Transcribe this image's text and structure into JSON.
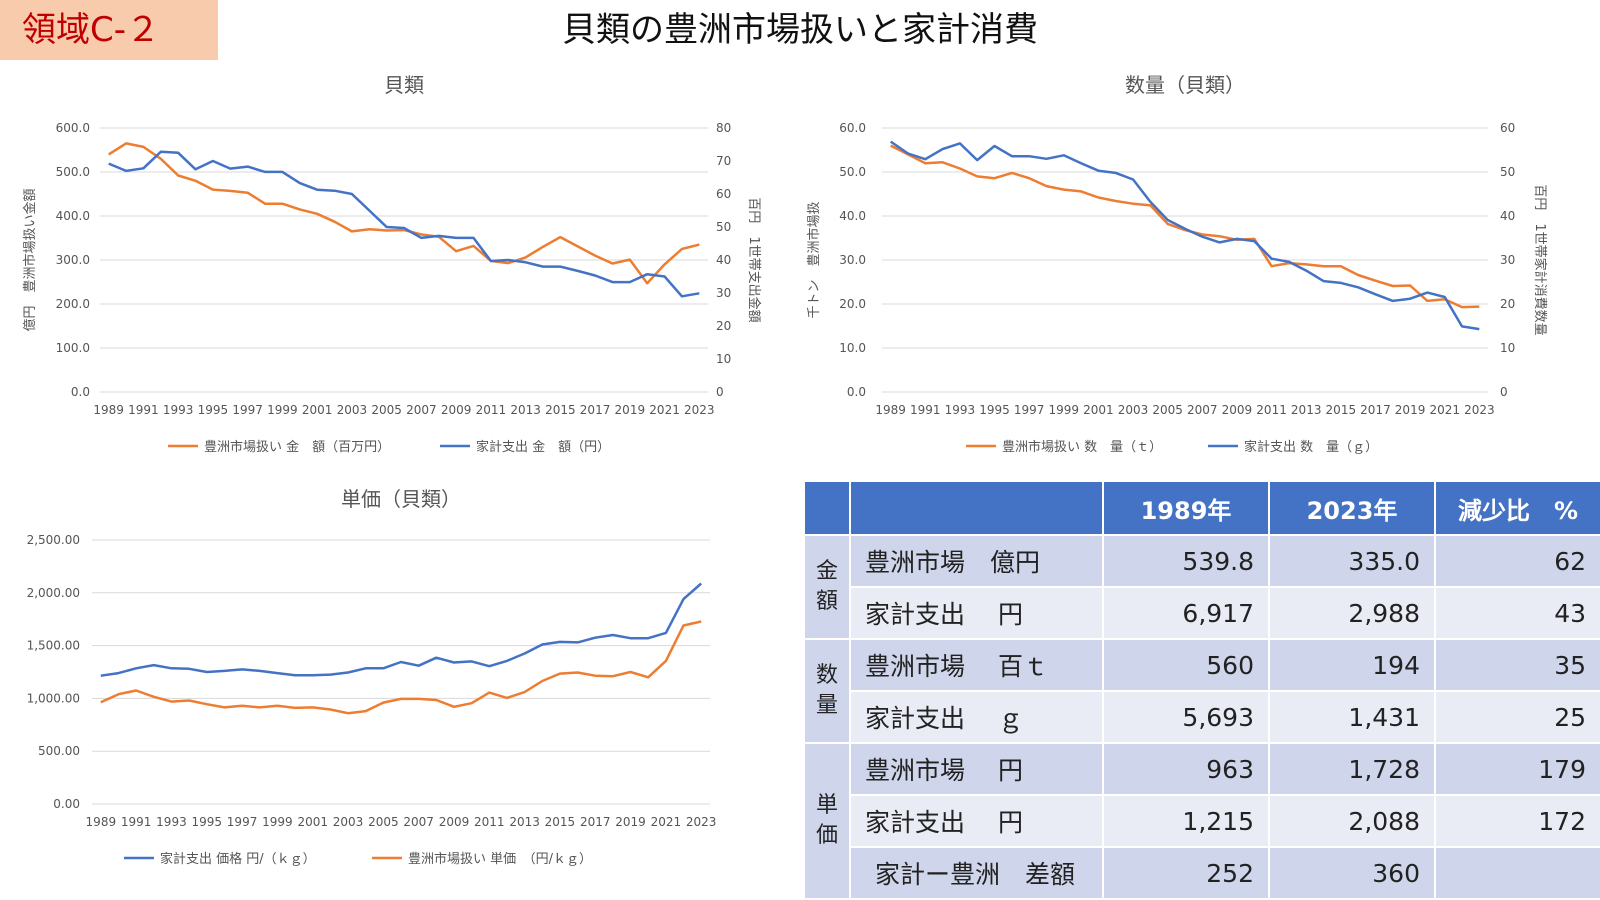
{
  "badge": "領域C-２",
  "main_title": "貝類の豊洲市場扱いと家計消費",
  "colors": {
    "orange": "#ed7d31",
    "blue": "#4472c4",
    "badge_bg": "#f8cbad",
    "badge_text": "#c00000"
  },
  "chart_data": [
    {
      "type": "line",
      "title": "貝類",
      "ylabel": "億円　豊洲市場扱い金額",
      "y2label": "百円　1世帯支出金額",
      "ylim": [
        0,
        600
      ],
      "y2lim": [
        0,
        80
      ],
      "yticks": [
        "600.0",
        "500.0",
        "400.0",
        "300.0",
        "200.0",
        "100.0",
        "0.0"
      ],
      "y2ticks": [
        "80",
        "70",
        "60",
        "50",
        "40",
        "30",
        "20",
        "10",
        "0"
      ],
      "x_tick_labels": [
        "1989",
        "1991",
        "1993",
        "1995",
        "1997",
        "1999",
        "2001",
        "2003",
        "2005",
        "2007",
        "2009",
        "2011",
        "2013",
        "2015",
        "2017",
        "2019",
        "2021",
        "2023"
      ],
      "x": [
        1989,
        1990,
        1991,
        1992,
        1993,
        1994,
        1995,
        1996,
        1997,
        1998,
        1999,
        2000,
        2001,
        2002,
        2003,
        2004,
        2005,
        2006,
        2007,
        2008,
        2009,
        2010,
        2011,
        2012,
        2013,
        2014,
        2015,
        2016,
        2017,
        2018,
        2019,
        2020,
        2021,
        2022,
        2023
      ],
      "series": [
        {
          "name": "豊洲市場扱い 金　額（百万円）",
          "axis": "left",
          "color": "#ed7d31",
          "values": [
            540,
            565,
            557,
            530,
            492,
            480,
            460,
            457,
            453,
            428,
            428,
            415,
            405,
            387,
            365,
            370,
            367,
            368,
            358,
            353,
            320,
            332,
            298,
            293,
            306,
            330,
            352,
            331,
            310,
            292,
            301,
            247,
            290,
            325,
            335
          ]
        },
        {
          "name": "家計支出 金　額（円）",
          "axis": "right",
          "color": "#4472c4",
          "values": [
            69.2,
            67.0,
            67.8,
            72.8,
            72.5,
            67.5,
            70.0,
            67.7,
            68.3,
            66.7,
            66.7,
            63.3,
            61.3,
            61.0,
            60.0,
            55.0,
            50.0,
            49.7,
            46.7,
            47.3,
            46.7,
            46.7,
            39.7,
            40.0,
            39.3,
            38.0,
            38.0,
            36.7,
            35.3,
            33.3,
            33.3,
            35.7,
            35.0,
            29.0,
            29.9
          ]
        }
      ]
    },
    {
      "type": "line",
      "title": "数量（貝類）",
      "ylabel": "千トン　豊洲市場扱",
      "y2label": "百円　1世帯家計消費数量",
      "ylim": [
        0,
        60
      ],
      "y2lim": [
        0,
        60
      ],
      "yticks": [
        "60.0",
        "50.0",
        "40.0",
        "30.0",
        "20.0",
        "10.0",
        "0.0"
      ],
      "y2ticks": [
        "60",
        "50",
        "40",
        "30",
        "20",
        "10",
        "0"
      ],
      "x_tick_labels": [
        "1989",
        "1991",
        "1993",
        "1995",
        "1997",
        "1999",
        "2001",
        "2003",
        "2005",
        "2007",
        "2009",
        "2011",
        "2013",
        "2015",
        "2017",
        "2019",
        "2021",
        "2023"
      ],
      "x": [
        1989,
        1990,
        1991,
        1992,
        1993,
        1994,
        1995,
        1996,
        1997,
        1998,
        1999,
        2000,
        2001,
        2002,
        2003,
        2004,
        2005,
        2006,
        2007,
        2008,
        2009,
        2010,
        2011,
        2012,
        2013,
        2014,
        2015,
        2016,
        2017,
        2018,
        2019,
        2020,
        2021,
        2022,
        2023
      ],
      "series": [
        {
          "name": "豊洲市場扱い 数　量（ｔ）",
          "axis": "left",
          "color": "#ed7d31",
          "values": [
            56.0,
            54.0,
            52.0,
            52.2,
            50.8,
            49.0,
            48.6,
            49.8,
            48.6,
            46.8,
            46.0,
            45.6,
            44.2,
            43.4,
            42.8,
            42.4,
            38.2,
            36.8,
            35.8,
            35.4,
            34.6,
            34.8,
            28.6,
            29.3,
            29.0,
            28.6,
            28.6,
            26.6,
            25.3,
            24.1,
            24.2,
            20.7,
            21.1,
            19.3,
            19.4
          ]
        },
        {
          "name": "家計支出 数　量（ｇ）",
          "axis": "right",
          "color": "#4472c4",
          "values": [
            56.9,
            54.2,
            52.9,
            55.2,
            56.5,
            52.7,
            55.9,
            53.6,
            53.6,
            53.0,
            53.8,
            52.0,
            50.3,
            49.8,
            48.3,
            43.2,
            39.1,
            37.1,
            35.3,
            34.0,
            34.8,
            34.3,
            30.3,
            29.6,
            27.6,
            25.2,
            24.8,
            23.8,
            22.2,
            20.7,
            21.2,
            22.6,
            21.6,
            14.9,
            14.3
          ]
        }
      ]
    },
    {
      "type": "line",
      "title": "単価（貝類）",
      "ylim": [
        0,
        2500
      ],
      "yticks": [
        "2,500.00",
        "2,000.00",
        "1,500.00",
        "1,000.00",
        "500.00",
        "0.00"
      ],
      "x_tick_labels": [
        "1989",
        "1991",
        "1993",
        "1995",
        "1997",
        "1999",
        "2001",
        "2003",
        "2005",
        "2007",
        "2009",
        "2011",
        "2013",
        "2015",
        "2017",
        "2019",
        "2021",
        "2023"
      ],
      "x": [
        1989,
        1990,
        1991,
        1992,
        1993,
        1994,
        1995,
        1996,
        1997,
        1998,
        1999,
        2000,
        2001,
        2002,
        2003,
        2004,
        2005,
        2006,
        2007,
        2008,
        2009,
        2010,
        2011,
        2012,
        2013,
        2014,
        2015,
        2016,
        2017,
        2018,
        2019,
        2020,
        2021,
        2022,
        2023
      ],
      "series": [
        {
          "name": "家計支出 価格 円/（ｋｇ）",
          "color": "#4472c4",
          "values": [
            1215,
            1240,
            1285,
            1315,
            1285,
            1280,
            1250,
            1260,
            1275,
            1260,
            1240,
            1220,
            1220,
            1225,
            1245,
            1285,
            1285,
            1345,
            1310,
            1385,
            1340,
            1350,
            1305,
            1355,
            1425,
            1510,
            1535,
            1530,
            1575,
            1600,
            1570,
            1570,
            1620,
            1940,
            2088
          ]
        },
        {
          "name": "豊洲市場扱い 単価　（円/ｋｇ）",
          "color": "#ed7d31",
          "values": [
            963,
            1040,
            1075,
            1015,
            970,
            980,
            945,
            915,
            930,
            915,
            930,
            910,
            915,
            895,
            860,
            880,
            960,
            995,
            995,
            985,
            920,
            955,
            1055,
            1005,
            1060,
            1165,
            1235,
            1245,
            1215,
            1210,
            1250,
            1200,
            1355,
            1690,
            1728
          ]
        }
      ]
    }
  ],
  "table": {
    "headers": [
      "",
      "",
      "1989年",
      "2023年",
      "減少比　%"
    ],
    "groups": [
      {
        "label": "金額",
        "rows": [
          {
            "label": "豊洲市場　億円",
            "v1989": "539.8",
            "v2023": "335.0",
            "ratio": "62"
          },
          {
            "label": "家計支出　 円",
            "v1989": "6,917",
            "v2023": "2,988",
            "ratio": "43"
          }
        ]
      },
      {
        "label": "数量",
        "rows": [
          {
            "label": "豊洲市場　 百ｔ",
            "v1989": "560",
            "v2023": "194",
            "ratio": "35"
          },
          {
            "label": "家計支出　 ｇ",
            "v1989": "5,693",
            "v2023": "1,431",
            "ratio": "25"
          }
        ]
      },
      {
        "label": "単価",
        "rows": [
          {
            "label": "豊洲市場　 円",
            "v1989": "963",
            "v2023": "1,728",
            "ratio": "179"
          },
          {
            "label": "家計支出　 円",
            "v1989": "1,215",
            "v2023": "2,088",
            "ratio": "172"
          },
          {
            "label": "家計ー豊洲　差額",
            "v1989": "252",
            "v2023": "360",
            "ratio": ""
          }
        ]
      }
    ]
  }
}
